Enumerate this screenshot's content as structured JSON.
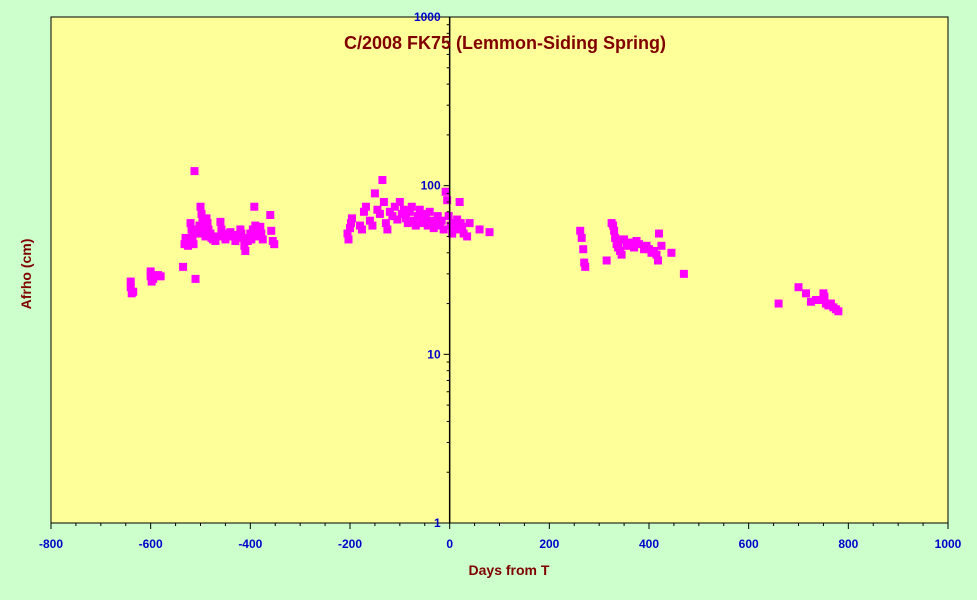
{
  "chart_data": {
    "type": "scatter",
    "title": "C/2008 FK75 (Lemmon-Siding Spring)",
    "xlabel": "Days from T",
    "ylabel": "Afrho (cm)",
    "xlim": [
      -800,
      1000
    ],
    "ylim": [
      1,
      1000
    ],
    "y_scale": "log",
    "grid": false,
    "legend": "none",
    "x_ticks": [
      "-800",
      "-600",
      "-400",
      "-200",
      "0",
      "200",
      "400",
      "600",
      "800",
      "1000"
    ],
    "y_ticks": [
      "1",
      "10",
      "100",
      "1000"
    ],
    "colors": {
      "background": "#ccffcc",
      "plot_area": "#ffff99",
      "marker": "#ff00ff",
      "title": "#800000",
      "tick": "#0000cc"
    },
    "series": [
      {
        "marker": "square",
        "points": [
          [
            -640,
            27
          ],
          [
            -640,
            25
          ],
          [
            -638,
            23
          ],
          [
            -635,
            23.5
          ],
          [
            -600,
            31
          ],
          [
            -600,
            29
          ],
          [
            -598,
            27
          ],
          [
            -595,
            28
          ],
          [
            -585,
            29.5
          ],
          [
            -580,
            29
          ],
          [
            -535,
            33
          ],
          [
            -532,
            45
          ],
          [
            -530,
            49
          ],
          [
            -528,
            47
          ],
          [
            -525,
            44
          ],
          [
            -520,
            60
          ],
          [
            -518,
            55
          ],
          [
            -516,
            50
          ],
          [
            -514,
            45
          ],
          [
            -512,
            122
          ],
          [
            -510,
            28
          ],
          [
            -508,
            54
          ],
          [
            -505,
            52
          ],
          [
            -502,
            58
          ],
          [
            -500,
            75
          ],
          [
            -498,
            68
          ],
          [
            -496,
            62
          ],
          [
            -494,
            57
          ],
          [
            -492,
            53
          ],
          [
            -490,
            50
          ],
          [
            -488,
            64
          ],
          [
            -486,
            60
          ],
          [
            -484,
            55
          ],
          [
            -480,
            52
          ],
          [
            -478,
            49
          ],
          [
            -475,
            48
          ],
          [
            -470,
            47
          ],
          [
            -465,
            50
          ],
          [
            -460,
            61
          ],
          [
            -458,
            55
          ],
          [
            -455,
            52
          ],
          [
            -450,
            48
          ],
          [
            -445,
            50
          ],
          [
            -440,
            53
          ],
          [
            -435,
            51
          ],
          [
            -430,
            47
          ],
          [
            -425,
            50
          ],
          [
            -420,
            55
          ],
          [
            -418,
            52
          ],
          [
            -415,
            49
          ],
          [
            -412,
            44
          ],
          [
            -410,
            41
          ],
          [
            -405,
            47
          ],
          [
            -400,
            52
          ],
          [
            -398,
            48
          ],
          [
            -395,
            55
          ],
          [
            -392,
            75
          ],
          [
            -390,
            58
          ],
          [
            -388,
            53
          ],
          [
            -385,
            50
          ],
          [
            -380,
            57
          ],
          [
            -378,
            52
          ],
          [
            -375,
            48
          ],
          [
            -360,
            67
          ],
          [
            -358,
            54
          ],
          [
            -355,
            47
          ],
          [
            -352,
            45
          ],
          [
            -205,
            52
          ],
          [
            -203,
            48
          ],
          [
            -200,
            56
          ],
          [
            -198,
            60
          ],
          [
            -196,
            64
          ],
          [
            -180,
            58
          ],
          [
            -176,
            55
          ],
          [
            -172,
            70
          ],
          [
            -168,
            75
          ],
          [
            -160,
            62
          ],
          [
            -155,
            58
          ],
          [
            -150,
            90
          ],
          [
            -145,
            72
          ],
          [
            -140,
            68
          ],
          [
            -135,
            108
          ],
          [
            -132,
            80
          ],
          [
            -128,
            60
          ],
          [
            -125,
            55
          ],
          [
            -120,
            70
          ],
          [
            -115,
            66
          ],
          [
            -110,
            75
          ],
          [
            -105,
            63
          ],
          [
            -100,
            80
          ],
          [
            -96,
            68
          ],
          [
            -92,
            72
          ],
          [
            -88,
            64
          ],
          [
            -84,
            60
          ],
          [
            -80,
            70
          ],
          [
            -76,
            75
          ],
          [
            -72,
            62
          ],
          [
            -68,
            58
          ],
          [
            -64,
            66
          ],
          [
            -60,
            72
          ],
          [
            -56,
            60
          ],
          [
            -52,
            68
          ],
          [
            -48,
            64
          ],
          [
            -44,
            58
          ],
          [
            -40,
            70
          ],
          [
            -36,
            62
          ],
          [
            -32,
            56
          ],
          [
            -28,
            60
          ],
          [
            -24,
            66
          ],
          [
            -20,
            58
          ],
          [
            -16,
            62
          ],
          [
            -12,
            55
          ],
          [
            -8,
            92
          ],
          [
            -5,
            82
          ],
          [
            -2,
            66
          ],
          [
            2,
            58
          ],
          [
            5,
            52
          ],
          [
            8,
            60
          ],
          [
            12,
            55
          ],
          [
            15,
            63
          ],
          [
            20,
            80
          ],
          [
            22,
            60
          ],
          [
            25,
            57
          ],
          [
            28,
            52
          ],
          [
            35,
            50
          ],
          [
            40,
            60
          ],
          [
            60,
            55
          ],
          [
            80,
            53
          ],
          [
            262,
            54
          ],
          [
            265,
            49
          ],
          [
            268,
            42
          ],
          [
            270,
            35
          ],
          [
            272,
            33
          ],
          [
            315,
            36
          ],
          [
            325,
            60
          ],
          [
            328,
            58
          ],
          [
            330,
            54
          ],
          [
            332,
            49
          ],
          [
            335,
            45
          ],
          [
            338,
            43
          ],
          [
            340,
            48
          ],
          [
            342,
            41
          ],
          [
            345,
            39
          ],
          [
            350,
            48
          ],
          [
            355,
            44
          ],
          [
            360,
            46
          ],
          [
            365,
            45
          ],
          [
            370,
            43
          ],
          [
            375,
            47
          ],
          [
            380,
            45
          ],
          [
            390,
            42
          ],
          [
            395,
            44
          ],
          [
            400,
            42
          ],
          [
            405,
            40
          ],
          [
            410,
            41
          ],
          [
            415,
            39
          ],
          [
            418,
            36
          ],
          [
            420,
            52
          ],
          [
            425,
            44
          ],
          [
            445,
            40
          ],
          [
            470,
            30
          ],
          [
            660,
            20
          ],
          [
            700,
            25
          ],
          [
            715,
            23
          ],
          [
            725,
            20.5
          ],
          [
            735,
            21
          ],
          [
            745,
            21
          ],
          [
            750,
            23
          ],
          [
            752,
            22
          ],
          [
            755,
            20
          ],
          [
            760,
            19.5
          ],
          [
            765,
            20
          ],
          [
            770,
            19
          ],
          [
            775,
            18.5
          ],
          [
            780,
            18
          ]
        ]
      }
    ]
  }
}
